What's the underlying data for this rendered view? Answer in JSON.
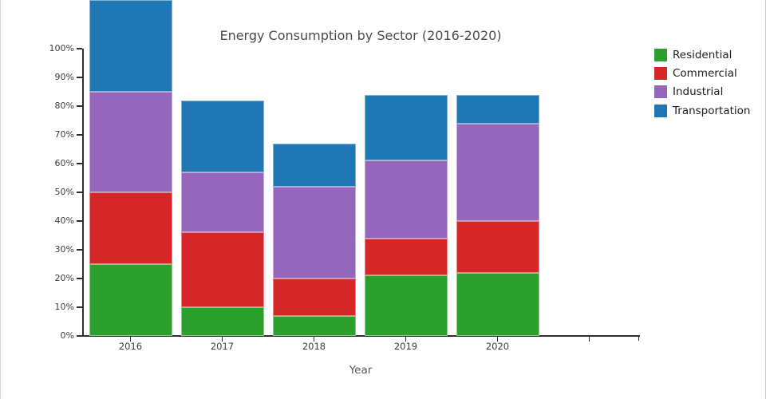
{
  "page": {
    "background": "#ffffff",
    "edge_line_color": "#d6d6d6"
  },
  "chart_data": {
    "type": "bar",
    "stacked": true,
    "title": "Energy Consumption by Sector (2016-2020)",
    "xlabel": "Year",
    "ylabel": "",
    "categories": [
      "2016",
      "2017",
      "2018",
      "2019",
      "2020"
    ],
    "series": [
      {
        "name": "Residential",
        "color": "#2ca02c",
        "values": [
          25,
          10,
          7,
          21,
          22
        ]
      },
      {
        "name": "Commercial",
        "color": "#d62728",
        "values": [
          25,
          26,
          13,
          13,
          18
        ]
      },
      {
        "name": "Industrial",
        "color": "#9467bd",
        "values": [
          35,
          21,
          32,
          27,
          34
        ]
      },
      {
        "name": "Transportation",
        "color": "#1f77b4",
        "values": [
          32,
          25,
          15,
          23,
          10
        ]
      }
    ],
    "cumulative_tops_percent": {
      "2016": [
        25,
        50,
        85,
        117
      ],
      "2017": [
        10,
        36,
        57,
        82
      ],
      "2018": [
        7,
        20,
        52,
        67
      ],
      "2019": [
        21,
        34,
        61,
        84
      ],
      "2020": [
        22,
        40,
        74,
        84
      ]
    },
    "ylim": [
      0,
      100
    ],
    "ytick_labels": [
      "0%",
      "10%",
      "20%",
      "30%",
      "40%",
      "50%",
      "60%",
      "70%",
      "80%",
      "90%",
      "100%"
    ],
    "grid": false,
    "legend_position": "right",
    "axis_color": "#2e2e2e",
    "note": "2016 bar total exceeds the 100% axis maximum; its Transportation segment is clipped at the top edge of the figure"
  }
}
